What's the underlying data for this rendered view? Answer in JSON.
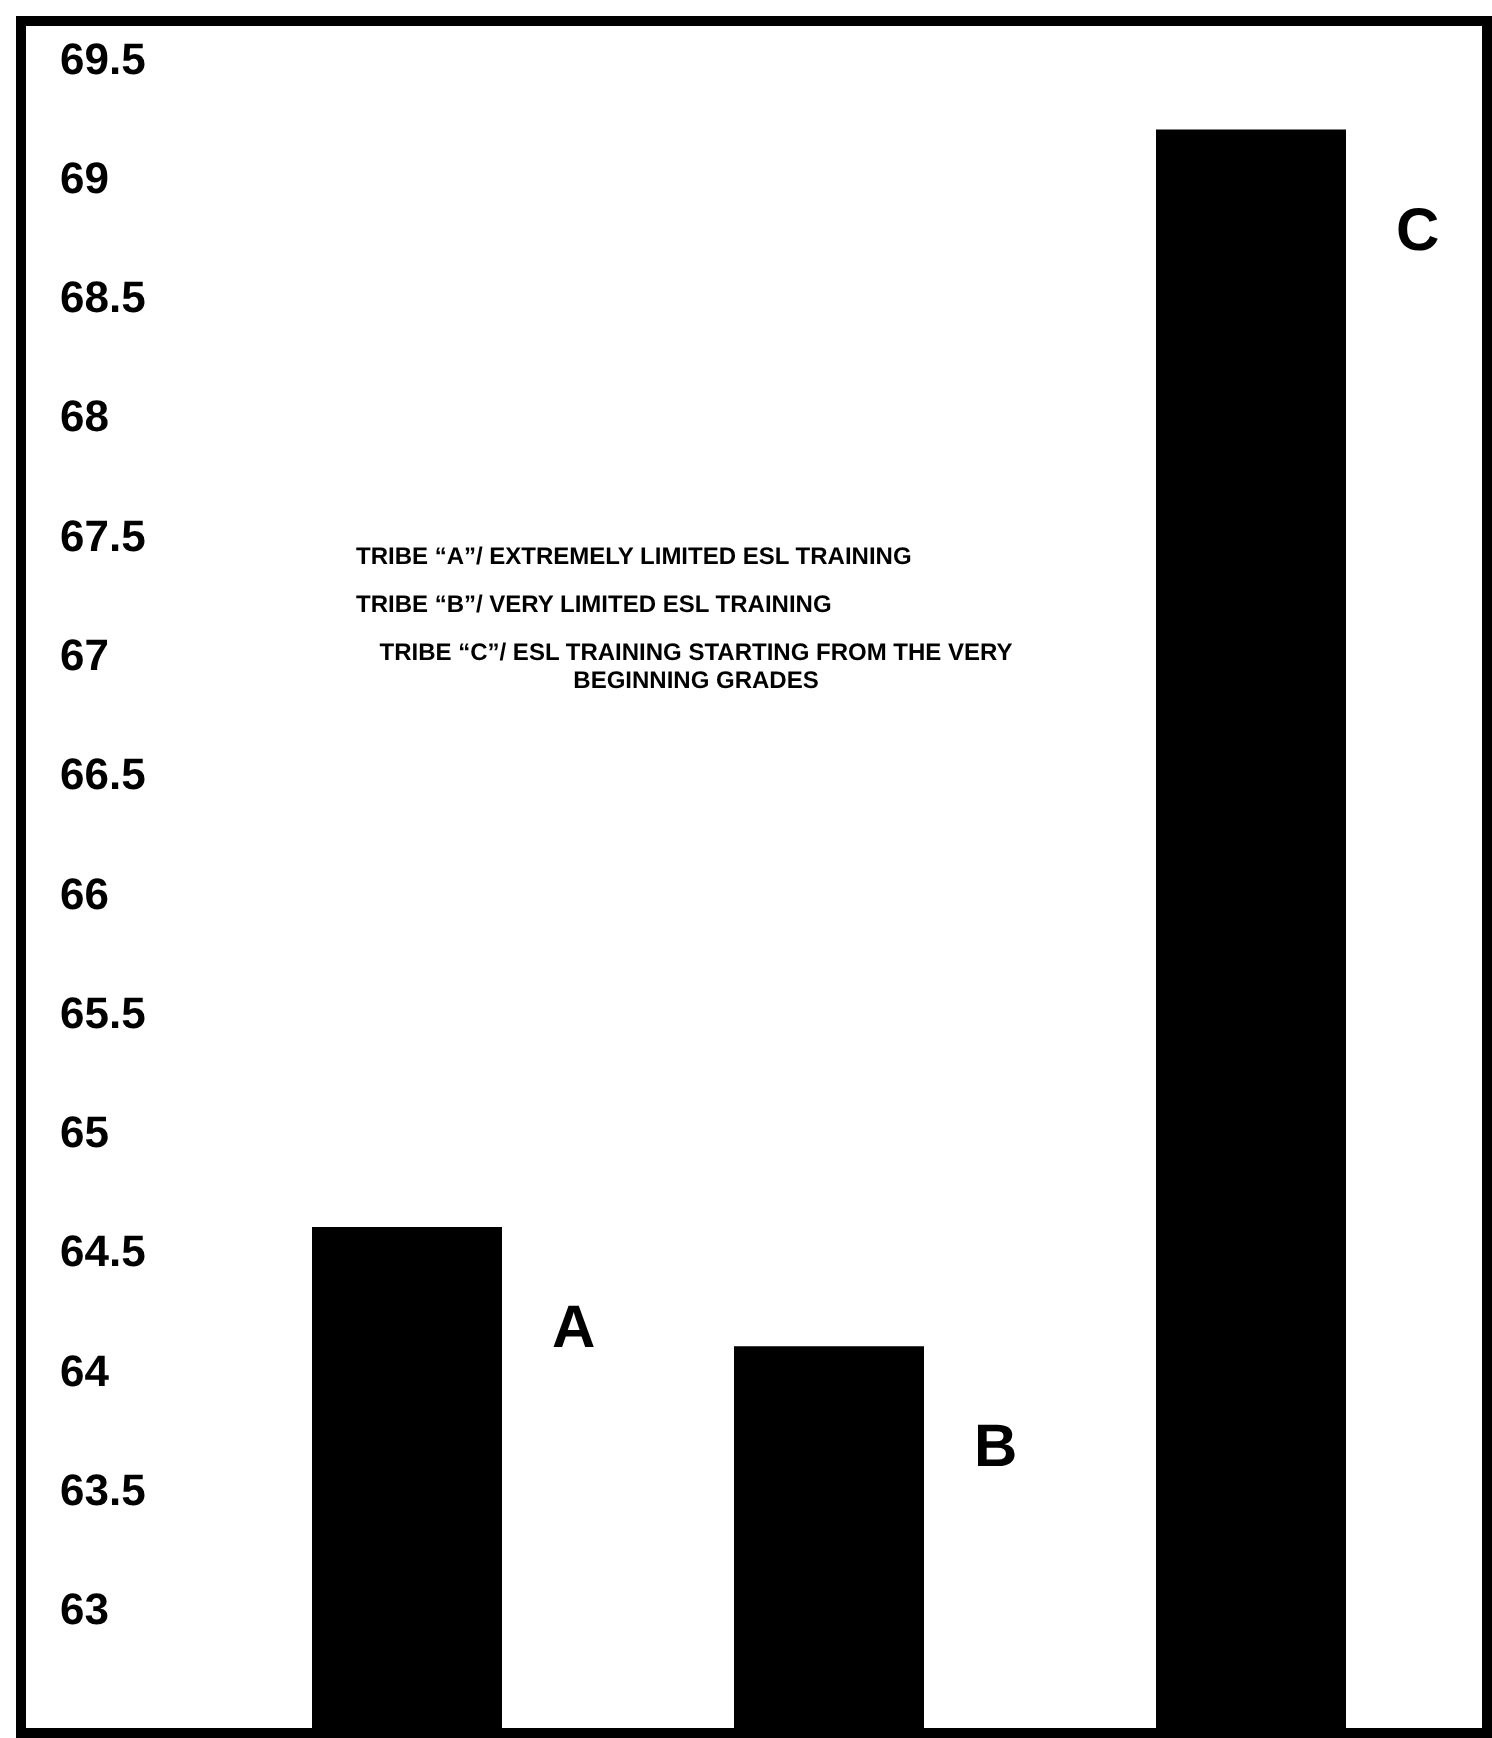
{
  "chart_data": {
    "type": "bar",
    "categories": [
      "A",
      "B",
      "C"
    ],
    "values": [
      64.6,
      64.1,
      69.2
    ],
    "color": "#000000",
    "ylim": [
      62.5,
      69.5
    ],
    "yticks": [
      63,
      63.5,
      64,
      64.5,
      65,
      65.5,
      66,
      66.5,
      67,
      67.5,
      68,
      68.5,
      69,
      69.5
    ],
    "grid": false,
    "annotations": [
      "TRIBE “A”/ EXTREMELY LIMITED ESL TRAINING",
      "TRIBE “B”/ VERY LIMITED ESL TRAINING",
      "TRIBE “C”/ ESL TRAINING STARTING FROM THE VERY BEGINNING GRADES"
    ]
  }
}
